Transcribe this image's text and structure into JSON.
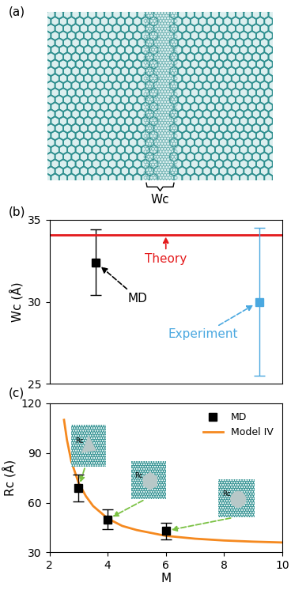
{
  "chart_data": [
    {
      "type": "diagram",
      "title": "(a)",
      "label": "Wc"
    },
    {
      "type": "scatter",
      "title": "(b)",
      "y_label": "Wc (Å)",
      "xlim": [
        0,
        10
      ],
      "ylim": [
        25,
        35
      ],
      "yticks": [
        25,
        30,
        35
      ],
      "tick_labels": "y",
      "series": [
        {
          "name": "MD",
          "type": "scatter",
          "color": "#000000",
          "marker": "square",
          "x": [
            2
          ],
          "values": [
            32.4
          ],
          "error": [
            2.0
          ]
        },
        {
          "name": "Theory",
          "type": "hline",
          "color": "#e41a1c",
          "values": [
            34.1
          ]
        },
        {
          "name": "Experiment",
          "type": "scatter",
          "color": "#4aa8e0",
          "marker": "square",
          "x": [
            9
          ],
          "values": [
            30.0
          ],
          "error": [
            4.5
          ]
        }
      ]
    },
    {
      "type": "line",
      "title": "(c)",
      "x_label": "M",
      "y_label": "Rc (Å)",
      "xlim": [
        2,
        10
      ],
      "xticks": [
        2,
        4,
        6,
        8,
        10
      ],
      "ylim": [
        30,
        120
      ],
      "yticks": [
        30,
        60,
        90,
        120
      ],
      "legend": "upper right",
      "series": [
        {
          "name": "MD",
          "type": "scatter",
          "color": "#000000",
          "marker": "square",
          "x": [
            3,
            4,
            6
          ],
          "values": [
            69,
            50,
            43
          ],
          "error": [
            8,
            6,
            5
          ]
        },
        {
          "name": "Model IV",
          "type": "line",
          "color": "#f5891f",
          "line_style": "solid",
          "x": [
            2.5,
            2.6,
            2.75,
            3,
            3.25,
            3.5,
            4,
            4.5,
            5,
            6,
            7,
            8,
            9,
            10
          ],
          "values": [
            110,
            98,
            85,
            72,
            64,
            58,
            50.5,
            46,
            43.5,
            40,
            38.3,
            37.2,
            36.5,
            36
          ]
        }
      ],
      "annotations": [
        "Rc",
        "Rc",
        "Rc"
      ]
    }
  ]
}
